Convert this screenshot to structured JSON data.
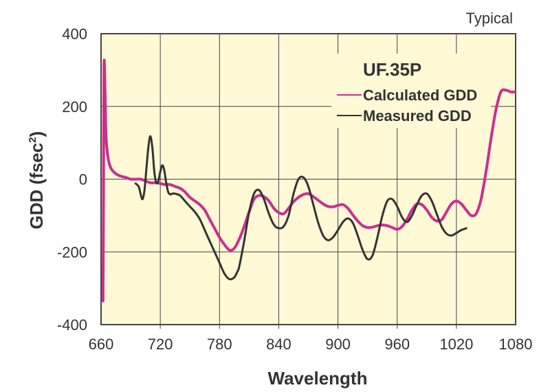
{
  "chart_data": {
    "type": "line",
    "title": "",
    "note": "Typical",
    "xlabel": "Wavelength",
    "ylabel": "GDD (fsec",
    "ylabel_superscript": "2",
    "ylabel_close": ")",
    "xlim": [
      660,
      1080
    ],
    "ylim": [
      -400,
      400
    ],
    "xticks": [
      660,
      720,
      780,
      840,
      900,
      960,
      1020,
      1080
    ],
    "yticks": [
      -400,
      -200,
      0,
      200,
      400
    ],
    "xtick_labels": [
      "660",
      "720",
      "780",
      "840",
      "900",
      "960",
      "1020",
      "1080"
    ],
    "ytick_labels": [
      "-400",
      "-200",
      "0",
      "200",
      "400"
    ],
    "grid": true,
    "background_color": "#fff9d6",
    "legend": {
      "title": "UF.35P",
      "placement": "top-right",
      "entries": [
        "Calculated GDD",
        "Measured GDD"
      ]
    },
    "series": [
      {
        "name": "Calculated GDD",
        "color": "#cc2e8f",
        "x": [
          662,
          662.5,
          663,
          664,
          665,
          667,
          670,
          675,
          680,
          685,
          690,
          695,
          700,
          705,
          710,
          715,
          720,
          725,
          730,
          735,
          740,
          745,
          750,
          755,
          760,
          765,
          770,
          775,
          780,
          785,
          790,
          795,
          800,
          805,
          810,
          815,
          820,
          825,
          830,
          835,
          840,
          845,
          850,
          855,
          860,
          865,
          870,
          875,
          880,
          885,
          890,
          895,
          900,
          905,
          910,
          915,
          920,
          925,
          930,
          935,
          940,
          945,
          950,
          955,
          960,
          965,
          970,
          975,
          980,
          985,
          990,
          995,
          1000,
          1005,
          1010,
          1015,
          1020,
          1025,
          1030,
          1035,
          1040,
          1045,
          1050,
          1055,
          1060,
          1065,
          1070,
          1075,
          1079
        ],
        "values": [
          -335,
          0,
          315,
          250,
          120,
          60,
          30,
          15,
          8,
          5,
          0,
          0,
          0,
          -5,
          -10,
          -10,
          -12,
          -15,
          -15,
          -20,
          -25,
          -35,
          -50,
          -60,
          -70,
          -85,
          -110,
          -135,
          -160,
          -180,
          -195,
          -190,
          -165,
          -130,
          -90,
          -55,
          -45,
          -48,
          -60,
          -80,
          -92,
          -95,
          -80,
          -62,
          -50,
          -42,
          -40,
          -48,
          -58,
          -68,
          -75,
          -76,
          -72,
          -70,
          -80,
          -98,
          -115,
          -128,
          -133,
          -132,
          -128,
          -126,
          -128,
          -133,
          -138,
          -130,
          -110,
          -85,
          -68,
          -70,
          -85,
          -105,
          -115,
          -112,
          -90,
          -68,
          -60,
          -68,
          -85,
          -100,
          -95,
          -55,
          20,
          110,
          190,
          240,
          245,
          240,
          240
        ]
      },
      {
        "name": "Measured GDD",
        "color": "#333333",
        "x": [
          695,
          698,
          700,
          702,
          704,
          706,
          708,
          710,
          712,
          714,
          716,
          718,
          720,
          722,
          724,
          726,
          728,
          730,
          732,
          735,
          740,
          745,
          750,
          755,
          760,
          765,
          770,
          775,
          780,
          785,
          790,
          795,
          798,
          800,
          805,
          810,
          815,
          820,
          825,
          830,
          835,
          840,
          845,
          850,
          855,
          860,
          865,
          870,
          875,
          880,
          885,
          890,
          895,
          900,
          905,
          910,
          915,
          920,
          925,
          930,
          935,
          940,
          945,
          950,
          955,
          960,
          965,
          970,
          975,
          980,
          985,
          990,
          995,
          1000,
          1005,
          1010,
          1015,
          1020,
          1025,
          1030
        ],
        "values": [
          -12,
          -20,
          -40,
          -55,
          -30,
          30,
          90,
          118,
          85,
          20,
          -10,
          -5,
          20,
          38,
          25,
          -10,
          -35,
          -42,
          -40,
          -40,
          -45,
          -60,
          -75,
          -90,
          -110,
          -140,
          -170,
          -200,
          -230,
          -260,
          -275,
          -270,
          -255,
          -240,
          -170,
          -90,
          -40,
          -30,
          -55,
          -95,
          -125,
          -135,
          -130,
          -100,
          -40,
          0,
          5,
          -20,
          -70,
          -120,
          -155,
          -168,
          -160,
          -140,
          -118,
          -108,
          -120,
          -155,
          -195,
          -220,
          -210,
          -160,
          -100,
          -60,
          -55,
          -75,
          -105,
          -118,
          -100,
          -70,
          -45,
          -40,
          -60,
          -95,
          -130,
          -150,
          -155,
          -148,
          -140,
          -135
        ]
      }
    ]
  }
}
